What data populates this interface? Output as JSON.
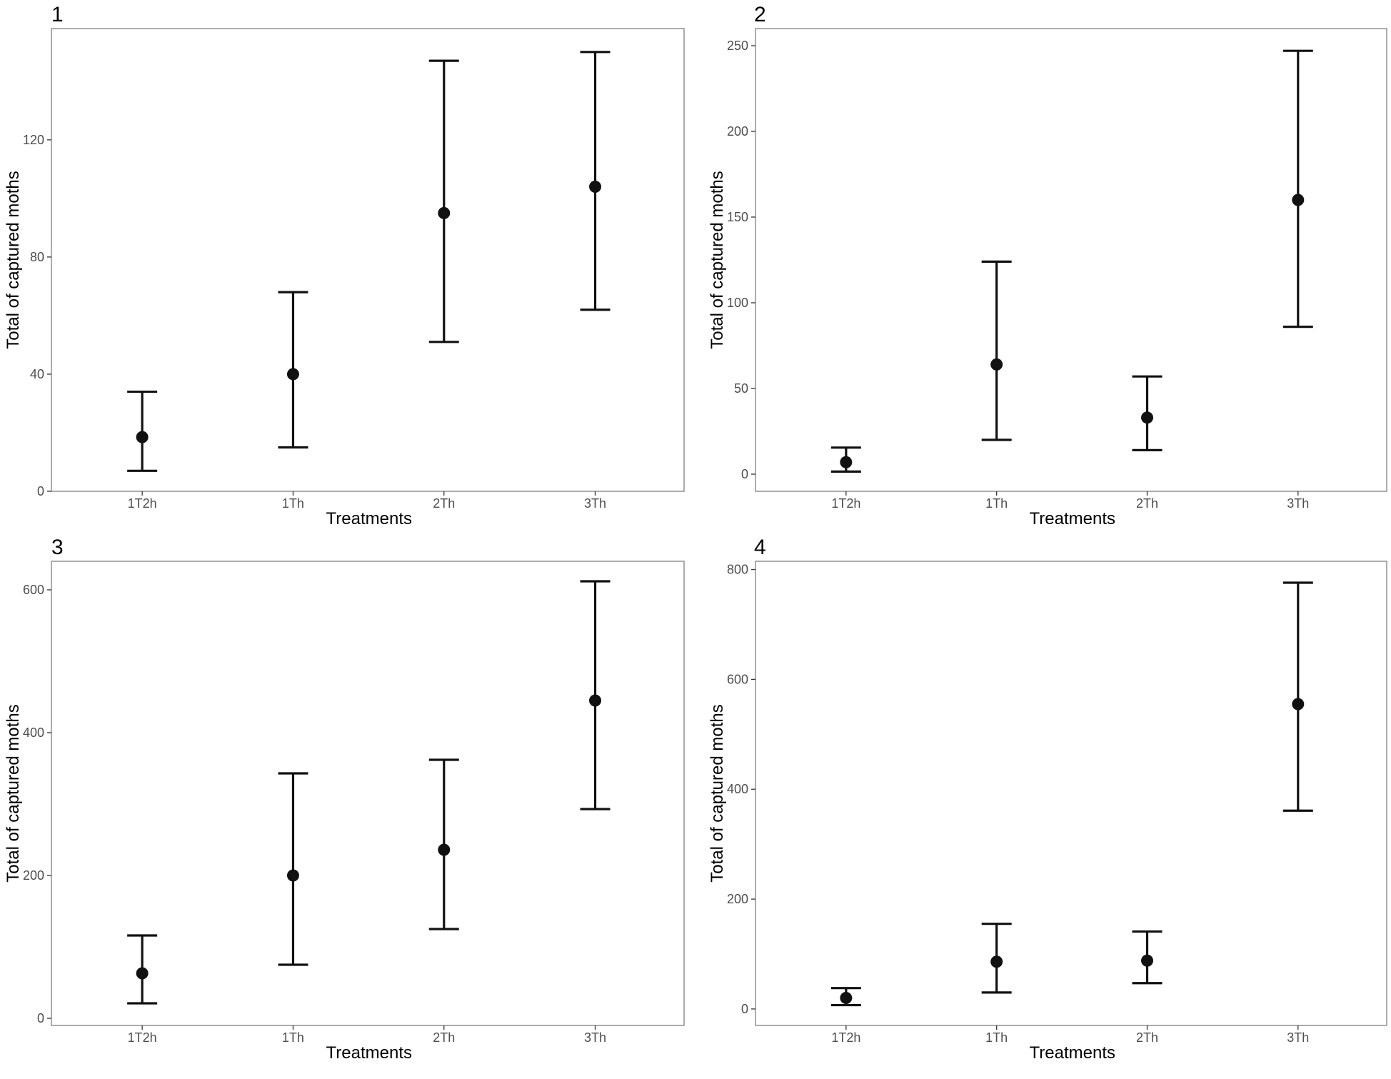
{
  "chart_data": [
    {
      "panel": "1",
      "type": "scatter",
      "categories": [
        "1T2h",
        "1Th",
        "2Th",
        "3Th"
      ],
      "xlabel": "Treatments",
      "ylabel": "Total of captured moths",
      "ylim": [
        0,
        158
      ],
      "yticks": [
        0,
        40,
        80,
        120
      ],
      "series": [
        {
          "values": [
            18.5,
            40,
            95,
            104
          ],
          "lower": [
            7,
            15,
            51,
            62
          ],
          "upper": [
            34,
            68,
            147,
            150
          ]
        }
      ],
      "grid": false
    },
    {
      "panel": "2",
      "type": "scatter",
      "categories": [
        "1T2h",
        "1Th",
        "2Th",
        "3Th"
      ],
      "xlabel": "Treatments",
      "ylabel": "Total of captured moths",
      "ylim": [
        -10,
        260
      ],
      "yticks": [
        0,
        50,
        100,
        150,
        200,
        250
      ],
      "series": [
        {
          "values": [
            7,
            64,
            33,
            160
          ],
          "lower": [
            1.5,
            20,
            14,
            86
          ],
          "upper": [
            15.5,
            124,
            57,
            247
          ]
        }
      ],
      "grid": false
    },
    {
      "panel": "3",
      "type": "scatter",
      "categories": [
        "1T2h",
        "1Th",
        "2Th",
        "3Th"
      ],
      "xlabel": "Treatments",
      "ylabel": "Total of captured moths",
      "ylim": [
        -10,
        640
      ],
      "yticks": [
        0,
        200,
        400,
        600
      ],
      "series": [
        {
          "values": [
            63,
            200,
            236,
            445
          ],
          "lower": [
            21,
            75,
            125,
            293
          ],
          "upper": [
            116,
            343,
            362,
            612
          ]
        }
      ],
      "grid": false
    },
    {
      "panel": "4",
      "type": "scatter",
      "categories": [
        "1T2h",
        "1Th",
        "2Th",
        "3Th"
      ],
      "xlabel": "Treatments",
      "ylabel": "Total of captured moths",
      "ylim": [
        -30,
        815
      ],
      "yticks": [
        0,
        200,
        400,
        600,
        800
      ],
      "series": [
        {
          "values": [
            20,
            86,
            88,
            555
          ],
          "lower": [
            7,
            30,
            47,
            361
          ],
          "upper": [
            38,
            155,
            141,
            776
          ]
        }
      ],
      "grid": false
    }
  ]
}
